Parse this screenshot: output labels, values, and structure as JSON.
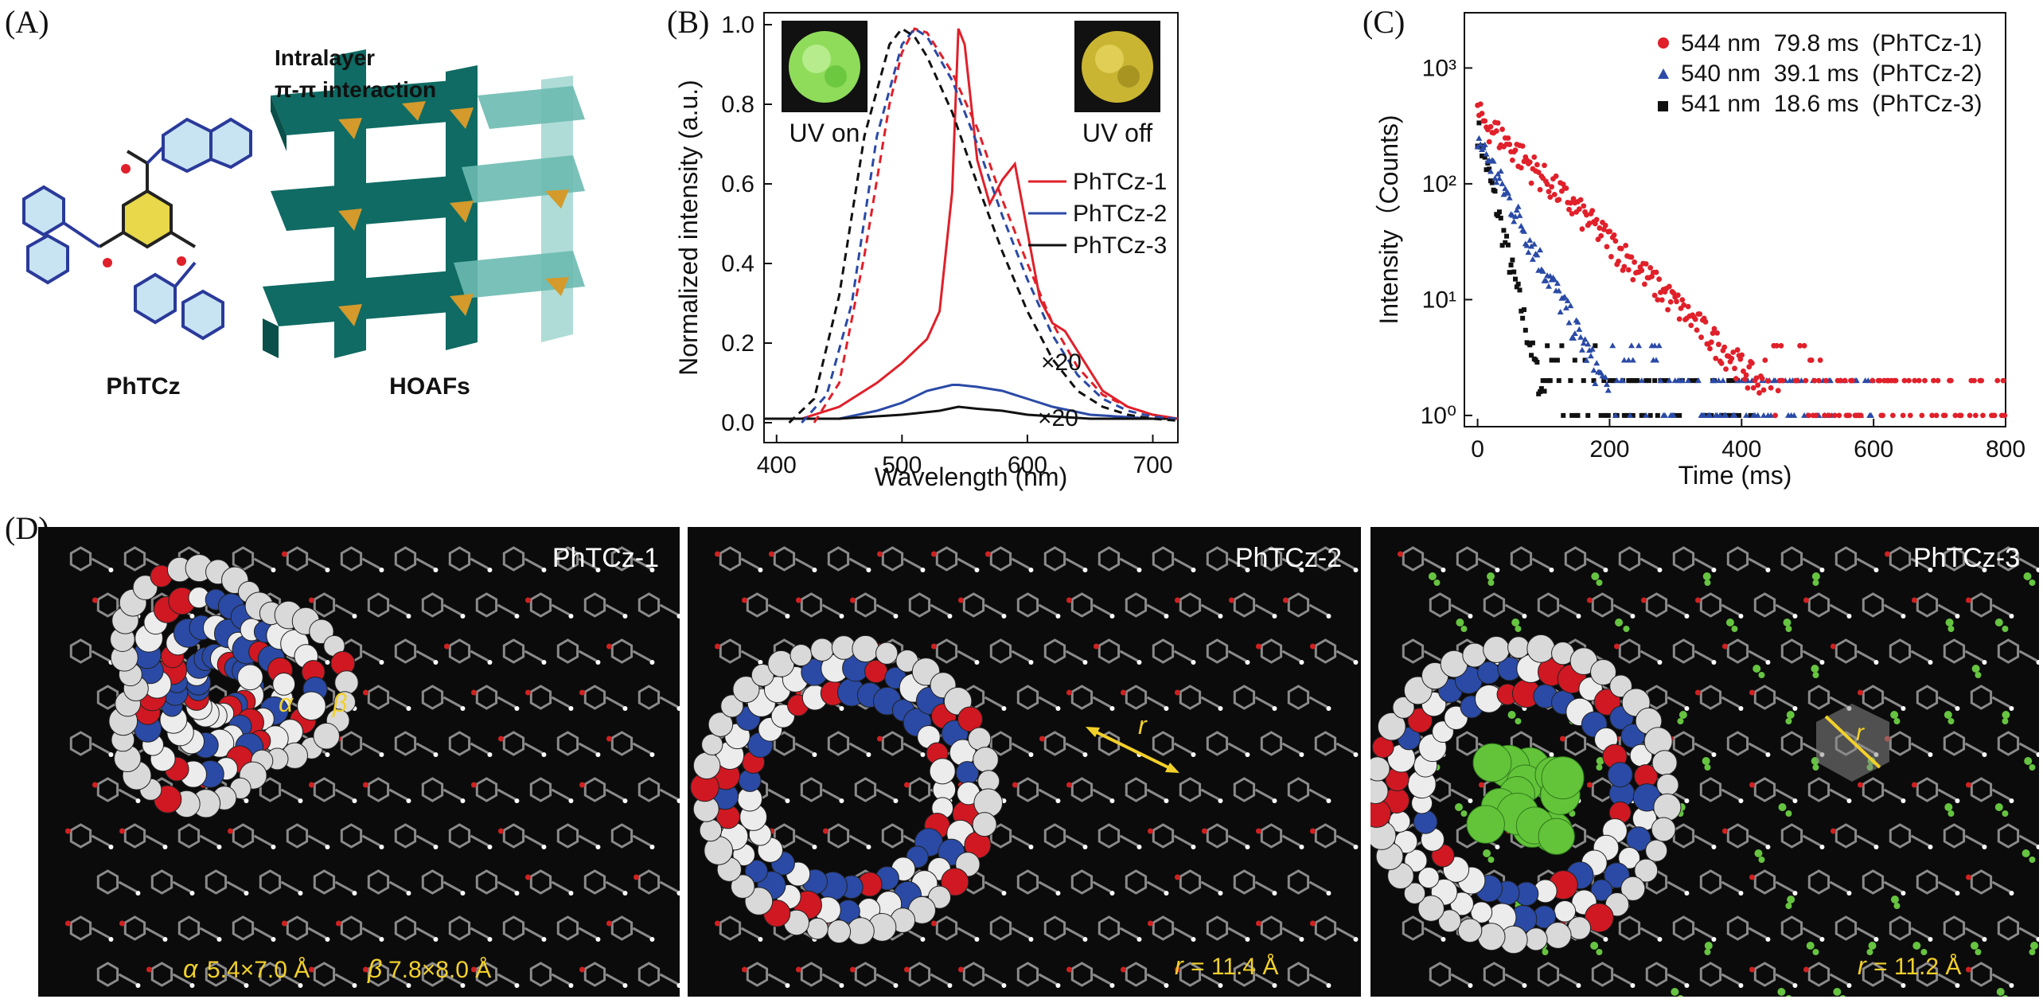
{
  "panel_labels": {
    "a": "(A)",
    "b": "(B)",
    "c": "(C)",
    "d": "(D)"
  },
  "panel_a": {
    "molecule_label": "PhTCz",
    "framework_label": "HOAFs",
    "interaction_line1": "Intralayer",
    "interaction_line2": "π-π interaction"
  },
  "panel_d": {
    "titles": [
      "PhTCz-1",
      "PhTCz-2",
      "PhTCz-3"
    ],
    "p1_alpha": "α",
    "p1_beta": "β",
    "p1_alpha_size": "5.4×7.0 Å",
    "p1_beta_size": "7.8×8.0 Å",
    "p2_r": "r",
    "p2_r_value": "= 11.4 Å",
    "p3_r": "r",
    "p3_r_value": "= 11.2 Å"
  },
  "colors": {
    "red": "#e0202a",
    "blue": "#2a4aa6",
    "black": "#111111",
    "framework": "#0f6b63",
    "node": "#d49a2c",
    "annot": "#f2d02a"
  },
  "chart_data": [
    {
      "type": "line",
      "panel": "B",
      "xlabel": "Wavelength (nm)",
      "ylabel": "Normalized intensity (a.u.)",
      "xlim": [
        390,
        720
      ],
      "ylim": [
        -0.05,
        1.03
      ],
      "xticks": [
        400,
        500,
        600,
        700
      ],
      "yticks": [
        0.0,
        0.2,
        0.4,
        0.6,
        0.8,
        1.0
      ],
      "legend_position": "right",
      "annotations": [
        "×20",
        "×20"
      ],
      "inset_labels": [
        "UV on",
        "UV off"
      ],
      "series": [
        {
          "name": "PhTCz-1",
          "color": "#e0202a",
          "style": "solid",
          "x": [
            390,
            420,
            450,
            480,
            500,
            520,
            530,
            540,
            545,
            550,
            560,
            570,
            580,
            590,
            600,
            610,
            620,
            630,
            640,
            660,
            680,
            700,
            720
          ],
          "y": [
            0.01,
            0.01,
            0.04,
            0.1,
            0.15,
            0.21,
            0.28,
            0.58,
            0.99,
            0.95,
            0.66,
            0.55,
            0.61,
            0.65,
            0.48,
            0.31,
            0.25,
            0.23,
            0.18,
            0.08,
            0.04,
            0.02,
            0.01
          ]
        },
        {
          "name": "PhTCz-2",
          "color": "#2a4aa6",
          "style": "solid",
          "x": [
            390,
            450,
            480,
            500,
            520,
            540,
            545,
            560,
            580,
            600,
            620,
            650,
            700,
            720
          ],
          "y": [
            0.01,
            0.01,
            0.03,
            0.05,
            0.08,
            0.095,
            0.095,
            0.09,
            0.08,
            0.06,
            0.04,
            0.02,
            0.01,
            0.01
          ]
        },
        {
          "name": "PhTCz-3",
          "color": "#111111",
          "style": "solid",
          "x": [
            390,
            450,
            500,
            530,
            545,
            560,
            580,
            600,
            650,
            700,
            720
          ],
          "y": [
            0.01,
            0.01,
            0.02,
            0.03,
            0.04,
            0.035,
            0.03,
            0.02,
            0.01,
            0.01,
            0.01
          ]
        },
        {
          "name": "PhTCz-1 (UV on)",
          "color": "#e0202a",
          "style": "dashed",
          "x": [
            430,
            450,
            470,
            490,
            500,
            510,
            520,
            540,
            560,
            580,
            600,
            620,
            640,
            660,
            680,
            700,
            720
          ],
          "y": [
            0.0,
            0.1,
            0.42,
            0.8,
            0.93,
            0.99,
            0.98,
            0.88,
            0.74,
            0.56,
            0.4,
            0.25,
            0.14,
            0.07,
            0.04,
            0.02,
            0.01
          ]
        },
        {
          "name": "PhTCz-2 (UV on)",
          "color": "#2a4aa6",
          "style": "dashed",
          "x": [
            420,
            440,
            460,
            480,
            500,
            510,
            520,
            540,
            560,
            580,
            600,
            620,
            640,
            660,
            680,
            700,
            720
          ],
          "y": [
            0.0,
            0.07,
            0.3,
            0.72,
            0.95,
            0.99,
            0.97,
            0.86,
            0.7,
            0.52,
            0.36,
            0.22,
            0.12,
            0.06,
            0.03,
            0.015,
            0.01
          ]
        },
        {
          "name": "PhTCz-3 (UV on)",
          "color": "#111111",
          "style": "dashed",
          "x": [
            410,
            430,
            450,
            470,
            490,
            500,
            510,
            520,
            540,
            560,
            580,
            600,
            620,
            640,
            660,
            680,
            700,
            720
          ],
          "y": [
            0.0,
            0.06,
            0.32,
            0.72,
            0.95,
            0.99,
            0.97,
            0.92,
            0.78,
            0.6,
            0.43,
            0.28,
            0.16,
            0.08,
            0.04,
            0.02,
            0.01,
            0.005
          ]
        }
      ]
    },
    {
      "type": "scatter",
      "panel": "C",
      "xlabel": "Time (ms)",
      "ylabel": "Intensity（Counts)",
      "xlim": [
        -20,
        800
      ],
      "xticks": [
        0,
        200,
        400,
        600,
        800
      ],
      "yscale": "log",
      "ylim": [
        0.8,
        3000
      ],
      "yticks": [
        1,
        10,
        100,
        1000
      ],
      "ytick_labels": [
        "10⁰",
        "10¹",
        "10²",
        "10³"
      ],
      "legend_position": "top-right",
      "series": [
        {
          "name": "544 nm  79.8 ms  (PhTCz-1)",
          "color": "#e0202a",
          "marker": "circle",
          "lifetime_ms": 79.8,
          "a0": 400,
          "floor_max_ms": 800
        },
        {
          "name": "540 nm  39.1 ms  (PhTCz-2)",
          "color": "#2a4aa6",
          "marker": "triangle",
          "lifetime_ms": 39.1,
          "a0": 250,
          "floor_max_ms": 600
        },
        {
          "name": "541 nm  18.6 ms  (PhTCz-3)",
          "color": "#111111",
          "marker": "square",
          "lifetime_ms": 18.6,
          "a0": 300,
          "floor_max_ms": 420
        }
      ]
    }
  ]
}
